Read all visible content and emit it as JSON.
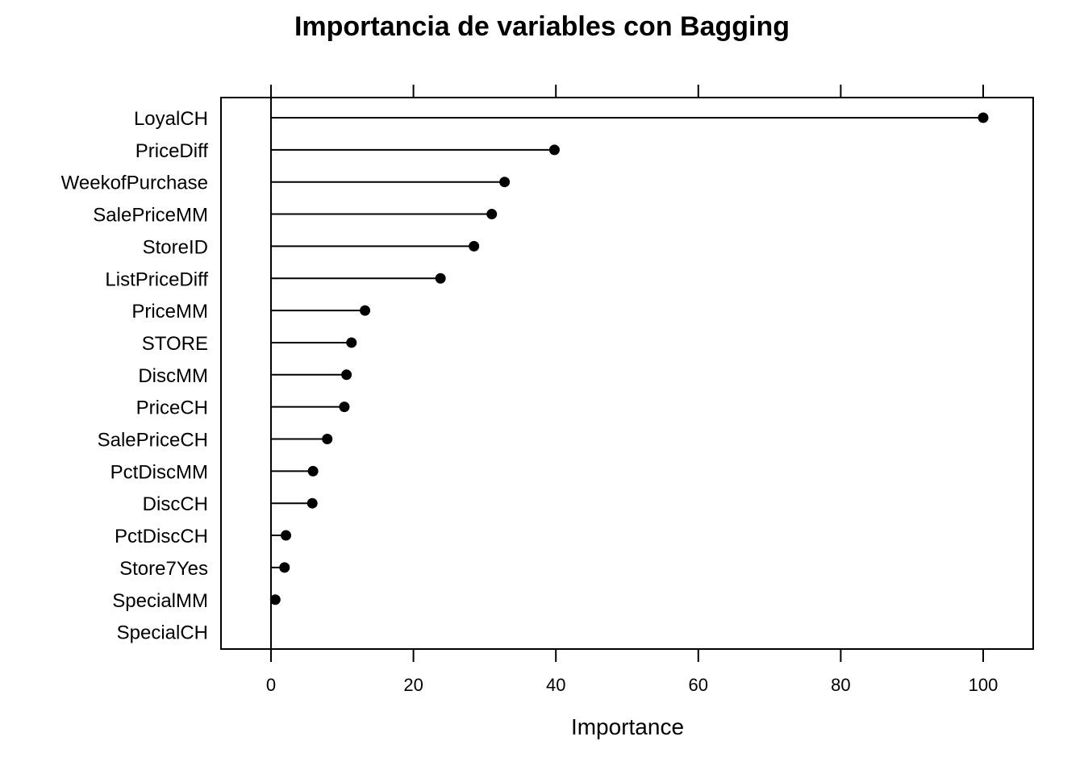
{
  "chart_data": {
    "type": "dot",
    "title": "Importancia de variables con Bagging",
    "xlabel": "Importance",
    "ylabel": "",
    "xlim": [
      -7,
      107
    ],
    "xticks": [
      0,
      20,
      40,
      60,
      80,
      100
    ],
    "xtick_labels": [
      "0",
      "20",
      "40",
      "60",
      "80",
      "100"
    ],
    "grid": false,
    "categories": [
      "LoyalCH",
      "PriceDiff",
      "WeekofPurchase",
      "SalePriceMM",
      "StoreID",
      "ListPriceDiff",
      "PriceMM",
      "STORE",
      "DiscMM",
      "PriceCH",
      "SalePriceCH",
      "PctDiscMM",
      "DiscCH",
      "PctDiscCH",
      "Store7Yes",
      "SpecialMM",
      "SpecialCH"
    ],
    "values": [
      100,
      39.8,
      32.8,
      31.0,
      28.5,
      23.8,
      13.2,
      11.3,
      10.6,
      10.3,
      7.9,
      5.9,
      5.8,
      2.1,
      1.9,
      0.6,
      0
    ],
    "colors": {
      "line": "#000000",
      "point": "#000000"
    }
  }
}
